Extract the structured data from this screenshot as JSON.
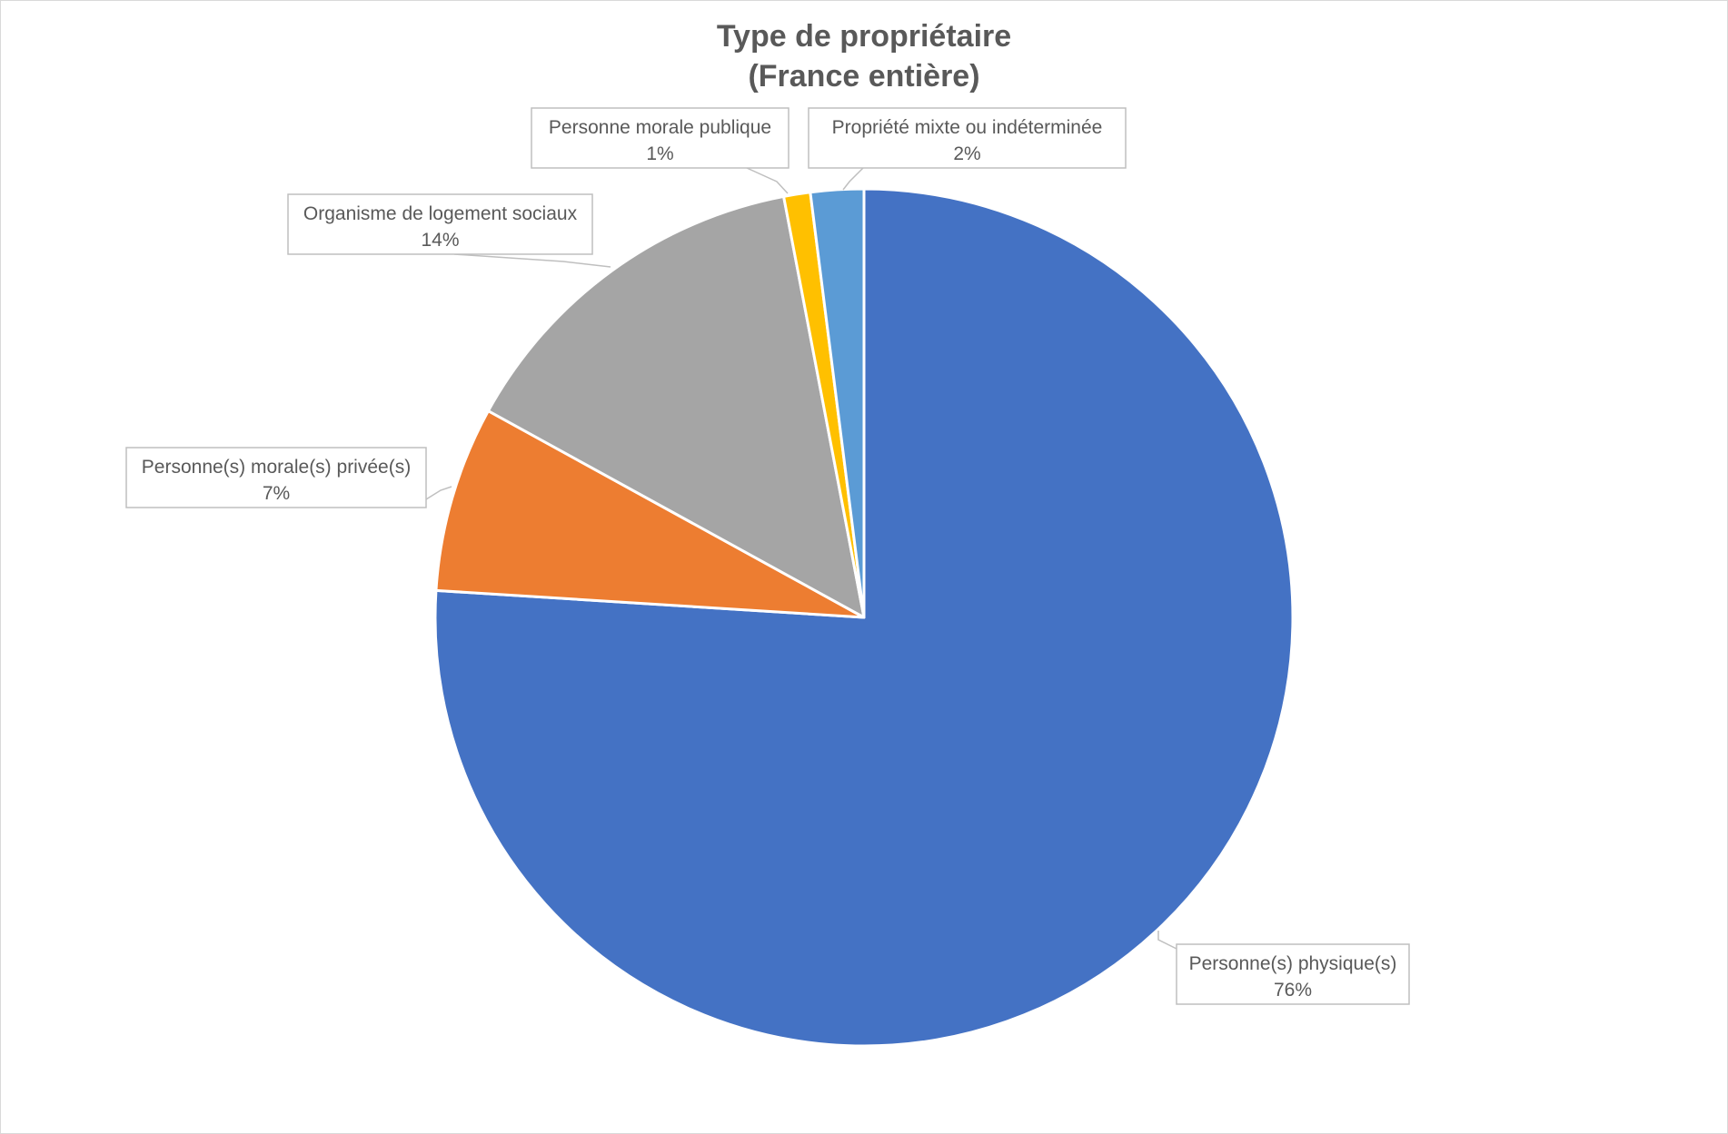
{
  "chart_data": {
    "type": "pie",
    "title": "Type de propriétaire",
    "subtitle": "(France entière)",
    "categories": [
      "Personne(s) physique(s)",
      "Personne(s) morale(s) privée(s)",
      "Organisme de logement sociaux",
      "Personne morale publique",
      "Propriété mixte ou indéterminée"
    ],
    "values": [
      76,
      7,
      14,
      1,
      2
    ],
    "data_labels": [
      "76%",
      "7%",
      "14%",
      "1%",
      "2%"
    ],
    "colors": [
      "#4472C4",
      "#ED7D31",
      "#A5A5A5",
      "#FFC000",
      "#5B9BD5"
    ],
    "legend": "none",
    "label_style": "callout"
  }
}
